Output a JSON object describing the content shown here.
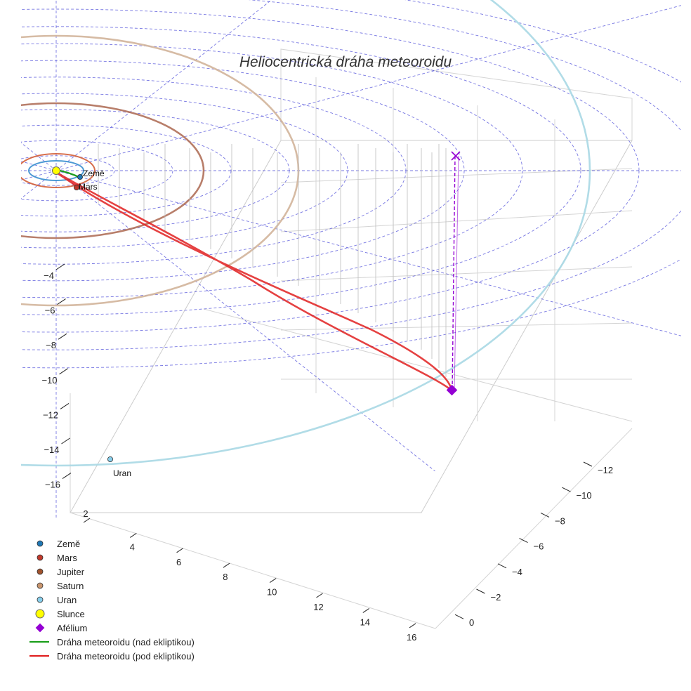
{
  "chart_data": {
    "type": "3d-orbit-plot",
    "title": "Heliocentrická dráha meteoroidu",
    "x_ticks": [
      "2",
      "4",
      "6",
      "8",
      "10",
      "12",
      "14",
      "16"
    ],
    "y_ticks": [
      "−12",
      "−10",
      "−8",
      "−6",
      "−4",
      "−2",
      "0"
    ],
    "z_ticks": [
      "−4",
      "−6",
      "−8",
      "−10",
      "−12",
      "−14",
      "−16"
    ],
    "planets": [
      {
        "name": "Země",
        "label": "Země",
        "color": "#1f77b4",
        "orbit_color": "#3a8fcf",
        "orbit_radius_au": 1.0
      },
      {
        "name": "Mars",
        "label": "Mars",
        "color": "#c0392b",
        "orbit_color": "#d35f3a",
        "orbit_radius_au": 1.52
      },
      {
        "name": "Jupiter",
        "label": "Jupiter",
        "color": "#a0522d",
        "orbit_color": "#b0705a",
        "orbit_radius_au": 5.2
      },
      {
        "name": "Saturn",
        "label": "Saturn",
        "color": "#c8956e",
        "orbit_color": "#d2b49a",
        "orbit_radius_au": 9.5
      },
      {
        "name": "Uran",
        "label": "Uran",
        "color": "#87ceeb",
        "orbit_color": "#a8d8e4",
        "orbit_radius_au": 19.2
      }
    ],
    "sun": {
      "label": "Slunce",
      "color": "#ffff00"
    },
    "aphelion": {
      "label": "Afélium",
      "color": "#9400d3"
    },
    "trajectory": [
      {
        "name": "Dráha meteoroidu (nad ekliptikou)",
        "color": "#1a9e1a"
      },
      {
        "name": "Dráha meteoroidu (pod ekliptikou)",
        "color": "#e02020"
      }
    ],
    "legend": [
      {
        "label": "Země",
        "marker": "dot",
        "color": "#1f77b4"
      },
      {
        "label": "Mars",
        "marker": "dot",
        "color": "#c0392b"
      },
      {
        "label": "Jupiter",
        "marker": "dot",
        "color": "#a0522d"
      },
      {
        "label": "Saturn",
        "marker": "dot",
        "color": "#c8956e"
      },
      {
        "label": "Uran",
        "marker": "dot",
        "color": "#87ceeb"
      },
      {
        "label": "Slunce",
        "marker": "big-dot",
        "color": "#ffff00"
      },
      {
        "label": "Afélium",
        "marker": "diamond",
        "color": "#9400d3"
      },
      {
        "label": "Dráha meteoroidu (nad ekliptikou)",
        "marker": "line",
        "color": "#1a9e1a"
      },
      {
        "label": "Dráha meteoroidu (pod ekliptikou)",
        "marker": "line",
        "color": "#e02020"
      }
    ],
    "legend_position": "bottom-left",
    "grid": true
  }
}
